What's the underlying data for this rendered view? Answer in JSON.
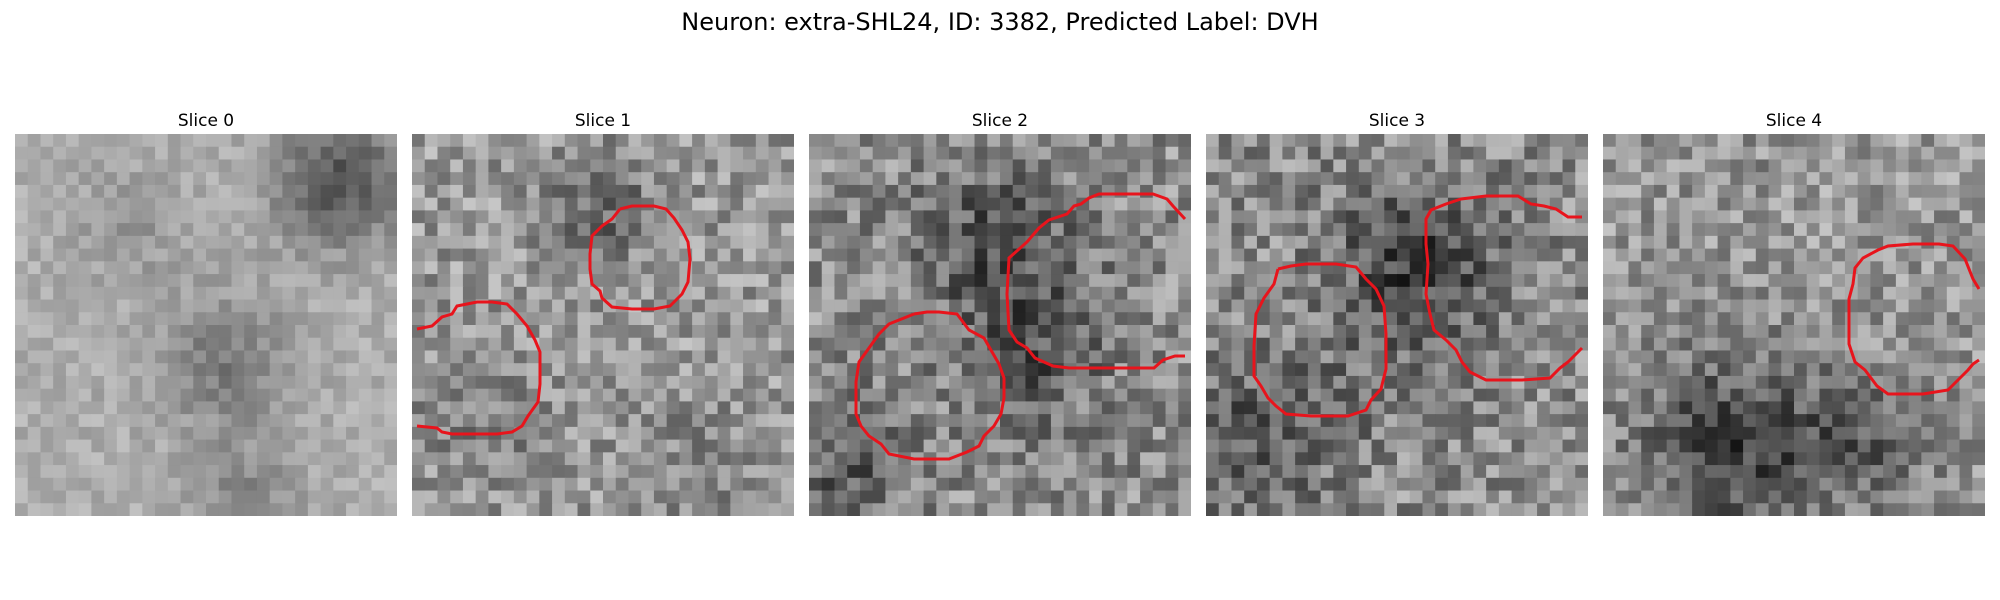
{
  "figure": {
    "title": "Neuron: extra-SHL24, ID: 3382, Predicted Label: DVH"
  },
  "panels": [
    {
      "title": "Slice 0",
      "contours": []
    },
    {
      "title": "Slice 1",
      "contours": [
        "upper-right",
        "left"
      ]
    },
    {
      "title": "Slice 2",
      "contours": [
        "upper-right",
        "lower-left"
      ]
    },
    {
      "title": "Slice 3",
      "contours": [
        "center-left",
        "right"
      ]
    },
    {
      "title": "Slice 4",
      "contours": [
        "right"
      ]
    }
  ],
  "colors": {
    "contour": "#e8141c"
  }
}
